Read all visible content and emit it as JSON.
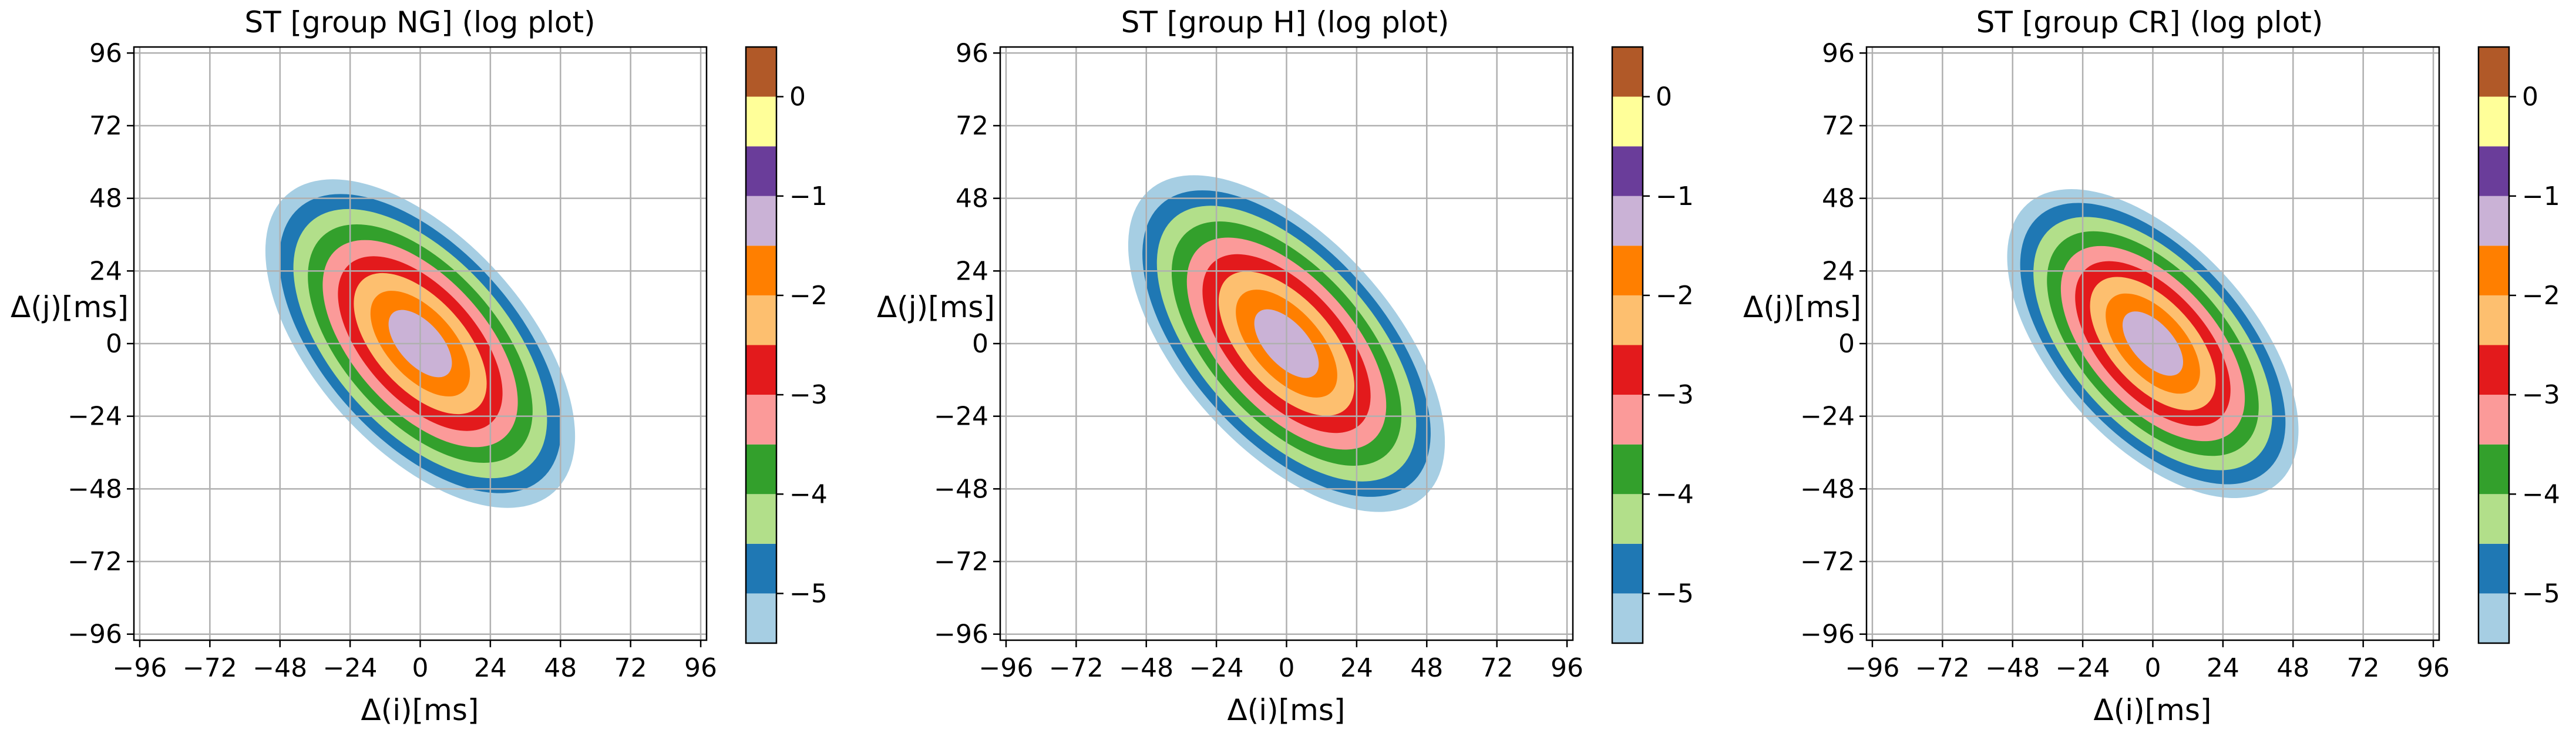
{
  "figure": {
    "panel_count": 3
  },
  "chart_data": [
    {
      "type": "contour",
      "title": "ST [group NG]  (log plot)",
      "xlabel": "Δ(i)[ms]",
      "ylabel": "Δ(j)[ms]",
      "xticks": [
        -96,
        -72,
        -48,
        -24,
        0,
        24,
        48,
        72,
        96
      ],
      "yticks": [
        96,
        72,
        48,
        24,
        0,
        -24,
        -48,
        -72,
        -96
      ],
      "xlim": [
        -98,
        98
      ],
      "ylim": [
        -98,
        98
      ],
      "grid": true,
      "peak": [
        0,
        0
      ],
      "tilt": "negative-correlation",
      "spread": {
        "major": 62,
        "minor": 34
      },
      "colorbar": {
        "levels": [
          -5.5,
          -5,
          -4.5,
          -4,
          -3.5,
          -3,
          -2.5,
          -2,
          -1.5,
          -1,
          -0.5,
          0,
          0.5
        ],
        "ticks": [
          0,
          -1,
          -2,
          -3,
          -4,
          -5
        ],
        "tick_labels": [
          "0",
          "−1",
          "−2",
          "−3",
          "−4",
          "−5"
        ],
        "colors": [
          "#a6cee3",
          "#1f78b4",
          "#b2df8a",
          "#33a02c",
          "#fb9a99",
          "#e31a1c",
          "#fdbf6f",
          "#ff7f00",
          "#cab2d6",
          "#6a3d9a",
          "#ffff99",
          "#b15928"
        ]
      }
    },
    {
      "type": "contour",
      "title": "ST [group H]  (log plot)",
      "xlabel": "Δ(i)[ms]",
      "ylabel": "Δ(j)[ms]",
      "xticks": [
        -96,
        -72,
        -48,
        -24,
        0,
        24,
        48,
        72,
        96
      ],
      "yticks": [
        96,
        72,
        48,
        24,
        0,
        -24,
        -48,
        -72,
        -96
      ],
      "xlim": [
        -98,
        98
      ],
      "ylim": [
        -98,
        98
      ],
      "grid": true,
      "peak": [
        0,
        0
      ],
      "tilt": "negative-correlation",
      "spread": {
        "major": 64,
        "minor": 34
      },
      "colorbar": {
        "levels": [
          -5.5,
          -5,
          -4.5,
          -4,
          -3.5,
          -3,
          -2.5,
          -2,
          -1.5,
          -1,
          -0.5,
          0,
          0.5
        ],
        "ticks": [
          0,
          -1,
          -2,
          -3,
          -4,
          -5
        ],
        "tick_labels": [
          "0",
          "−1",
          "−2",
          "−3",
          "−4",
          "−5"
        ],
        "colors": [
          "#a6cee3",
          "#1f78b4",
          "#b2df8a",
          "#33a02c",
          "#fb9a99",
          "#e31a1c",
          "#fdbf6f",
          "#ff7f00",
          "#cab2d6",
          "#6a3d9a",
          "#ffff99",
          "#b15928"
        ]
      }
    },
    {
      "type": "contour",
      "title": "ST [group CR]  (log plot)",
      "xlabel": "Δ(i)[ms]",
      "ylabel": "Δ(j)[ms]",
      "xticks": [
        -96,
        -72,
        -48,
        -24,
        0,
        24,
        48,
        72,
        96
      ],
      "yticks": [
        96,
        72,
        48,
        24,
        0,
        -24,
        -48,
        -72,
        -96
      ],
      "xlim": [
        -98,
        98
      ],
      "ylim": [
        -98,
        98
      ],
      "grid": true,
      "peak": [
        0,
        0
      ],
      "tilt": "negative-correlation",
      "spread": {
        "major": 58,
        "minor": 32
      },
      "colorbar": {
        "levels": [
          -5.5,
          -5,
          -4.5,
          -4,
          -3.5,
          -3,
          -2.5,
          -2,
          -1.5,
          -1,
          -0.5,
          0,
          0.5
        ],
        "ticks": [
          0,
          -1,
          -2,
          -3,
          -4,
          -5
        ],
        "tick_labels": [
          "0",
          "−1",
          "−2",
          "−3",
          "−4",
          "−5"
        ],
        "colors": [
          "#a6cee3",
          "#1f78b4",
          "#b2df8a",
          "#33a02c",
          "#fb9a99",
          "#e31a1c",
          "#fdbf6f",
          "#ff7f00",
          "#cab2d6",
          "#6a3d9a",
          "#ffff99",
          "#b15928"
        ]
      }
    }
  ]
}
